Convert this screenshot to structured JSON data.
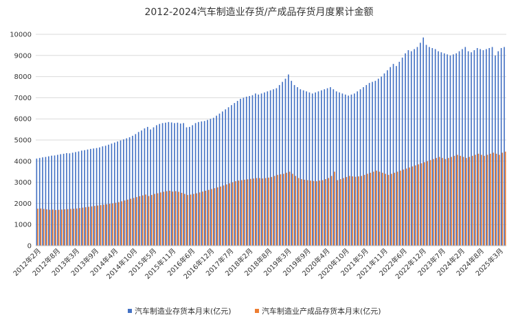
{
  "chart_data": {
    "type": "bar",
    "title": "2012-2024汽车制造业存货/产成品存货月度累计金额",
    "xlabel": "",
    "ylabel": "",
    "ylim": [
      0,
      10000
    ],
    "yticks": [
      0,
      1000,
      2000,
      3000,
      4000,
      5000,
      6000,
      7000,
      8000,
      9000,
      10000
    ],
    "grid": true,
    "legend_position": "bottom",
    "xtick_labels": [
      "2012年2月",
      "2012年8月",
      "2013年3月",
      "2013年9月",
      "2014年4月",
      "2014年10月",
      "2015年5月",
      "2015年11月",
      "2016年6月",
      "2016年12月",
      "2017年7月",
      "2018年2月",
      "2018年8月",
      "2019年3月",
      "2019年9月",
      "2020年4月",
      "2020年10月",
      "2021年5月",
      "2021年11月",
      "2022年6月",
      "2022年12月",
      "2023年7月",
      "2024年2月",
      "2024年8月",
      "2025年3月"
    ],
    "series": [
      {
        "name": "汽车制造业存货本月末(亿元)",
        "color": "#4472c4",
        "values": [
          4120,
          4150,
          4180,
          4200,
          4230,
          4260,
          4270,
          4300,
          4330,
          4350,
          4380,
          4370,
          4400,
          4430,
          4460,
          4500,
          4520,
          4550,
          4580,
          4600,
          4620,
          4650,
          4700,
          4730,
          4780,
          4830,
          4880,
          4930,
          4980,
          5030,
          5080,
          5130,
          5200,
          5280,
          5380,
          5450,
          5550,
          5620,
          5500,
          5600,
          5700,
          5760,
          5800,
          5820,
          5850,
          5830,
          5800,
          5820,
          5780,
          5800,
          5600,
          5620,
          5700,
          5800,
          5850,
          5880,
          5900,
          5950,
          6000,
          6050,
          6150,
          6250,
          6350,
          6450,
          6550,
          6650,
          6750,
          6850,
          6950,
          7000,
          7050,
          7080,
          7120,
          7200,
          7150,
          7200,
          7250,
          7300,
          7350,
          7400,
          7450,
          7600,
          7750,
          7900,
          8100,
          7800,
          7600,
          7500,
          7400,
          7350,
          7300,
          7250,
          7200,
          7250,
          7300,
          7350,
          7400,
          7450,
          7500,
          7400,
          7300,
          7250,
          7200,
          7150,
          7100,
          7150,
          7200,
          7300,
          7400,
          7500,
          7600,
          7700,
          7750,
          7800,
          7900,
          8000,
          8150,
          8300,
          8450,
          8600,
          8500,
          8700,
          8900,
          9100,
          9250,
          9200,
          9300,
          9400,
          9600,
          9850,
          9500,
          9400,
          9350,
          9300,
          9200,
          9150,
          9100,
          9050,
          9000,
          9050,
          9100,
          9200,
          9300,
          9400,
          9200,
          9150,
          9250,
          9350,
          9300,
          9250,
          9300,
          9350,
          9400,
          9000,
          9200,
          9350,
          9400
        ]
      },
      {
        "name": "汽车制造业产成品存货本月末(亿元)",
        "color": "#ed7d31",
        "values": [
          1750,
          1760,
          1740,
          1720,
          1700,
          1710,
          1690,
          1700,
          1710,
          1720,
          1730,
          1740,
          1750,
          1760,
          1780,
          1800,
          1820,
          1840,
          1860,
          1880,
          1900,
          1920,
          1940,
          1960,
          1980,
          2000,
          2030,
          2060,
          2100,
          2140,
          2180,
          2220,
          2260,
          2300,
          2340,
          2380,
          2420,
          2350,
          2400,
          2450,
          2480,
          2520,
          2550,
          2580,
          2600,
          2560,
          2580,
          2550,
          2500,
          2450,
          2400,
          2420,
          2450,
          2480,
          2520,
          2560,
          2600,
          2640,
          2680,
          2720,
          2760,
          2800,
          2850,
          2900,
          2950,
          3000,
          3050,
          3080,
          3100,
          3120,
          3140,
          3160,
          3180,
          3200,
          3200,
          3180,
          3200,
          3220,
          3250,
          3300,
          3350,
          3380,
          3400,
          3450,
          3500,
          3400,
          3300,
          3200,
          3150,
          3120,
          3100,
          3080,
          3060,
          3050,
          3080,
          3100,
          3150,
          3200,
          3300,
          3500,
          3100,
          3150,
          3200,
          3250,
          3300,
          3280,
          3260,
          3280,
          3300,
          3350,
          3400,
          3450,
          3500,
          3550,
          3500,
          3450,
          3400,
          3350,
          3400,
          3450,
          3500,
          3550,
          3600,
          3650,
          3700,
          3750,
          3800,
          3850,
          3900,
          3950,
          4000,
          4050,
          4100,
          4150,
          4200,
          4150,
          4100,
          4150,
          4200,
          4250,
          4300,
          4250,
          4200,
          4150,
          4200,
          4250,
          4300,
          4350,
          4300,
          4250,
          4300,
          4350,
          4400,
          4350,
          4300,
          4400,
          4450
        ]
      }
    ]
  }
}
